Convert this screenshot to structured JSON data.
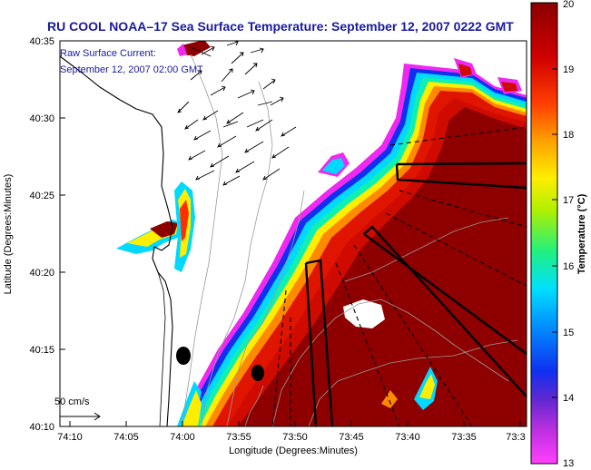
{
  "title": "RU COOL  NOAA–17  Sea Surface Temperature:  September 12, 2007 0222 GMT",
  "annotation": {
    "line1": "Raw Surface Current:",
    "line2": "September 12, 2007 02:00 GMT"
  },
  "scale_arrow_label": "50 cm/s",
  "axes": {
    "xlabel": "Longitude (Degrees:Minutes)",
    "ylabel": "Latitude (Degrees:Minutes)",
    "x_ticks": [
      "74:10",
      "74:05",
      "74:00",
      "73:55",
      "73:50",
      "73:45",
      "73:40",
      "73:35",
      "73:3"
    ],
    "y_ticks": [
      "40:35",
      "40:30",
      "40:25",
      "40:20",
      "40:15",
      "40:10"
    ]
  },
  "colorbar": {
    "label": "Temperature (°C)",
    "ticks": [
      "20",
      "19",
      "18",
      "17",
      "16",
      "15",
      "14",
      "13"
    ],
    "min": 13,
    "max": 20,
    "colors": [
      "#e020e0",
      "#7a2ad8",
      "#1030f0",
      "#00c0ff",
      "#10f0b0",
      "#b0f000",
      "#ffff00",
      "#ffa000",
      "#ff3000",
      "#d00000",
      "#8a0000"
    ]
  },
  "colors": {
    "hot": "#8e0000",
    "warm": "#cf0b00",
    "orange": "#ff7a00",
    "yellow": "#ffee00",
    "cyan": "#00d8ff",
    "magenta": "#f028f0",
    "title": "#1a1a9e"
  }
}
